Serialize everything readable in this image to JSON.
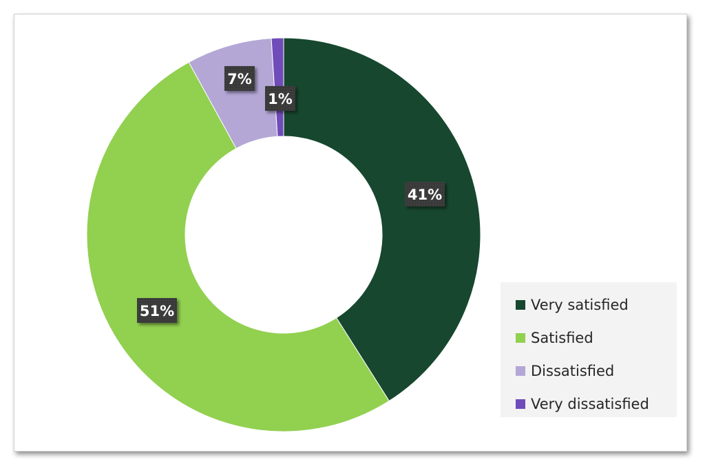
{
  "chart_data": {
    "type": "pie",
    "variant": "donut",
    "title": "",
    "categories": [
      "Very satisfied",
      "Satisfied",
      "Dissatisfied",
      "Very dissatisfied"
    ],
    "values": [
      41,
      51,
      7,
      1
    ],
    "data_labels": [
      "41%",
      "51%",
      "7%",
      "1%"
    ],
    "colors": [
      "#17472f",
      "#92d050",
      "#b4a7d6",
      "#6f4cb9"
    ],
    "label_box_color": "#404040",
    "legend_position": "right-bottom",
    "start_angle": "12 o'clock",
    "direction": "clockwise"
  }
}
